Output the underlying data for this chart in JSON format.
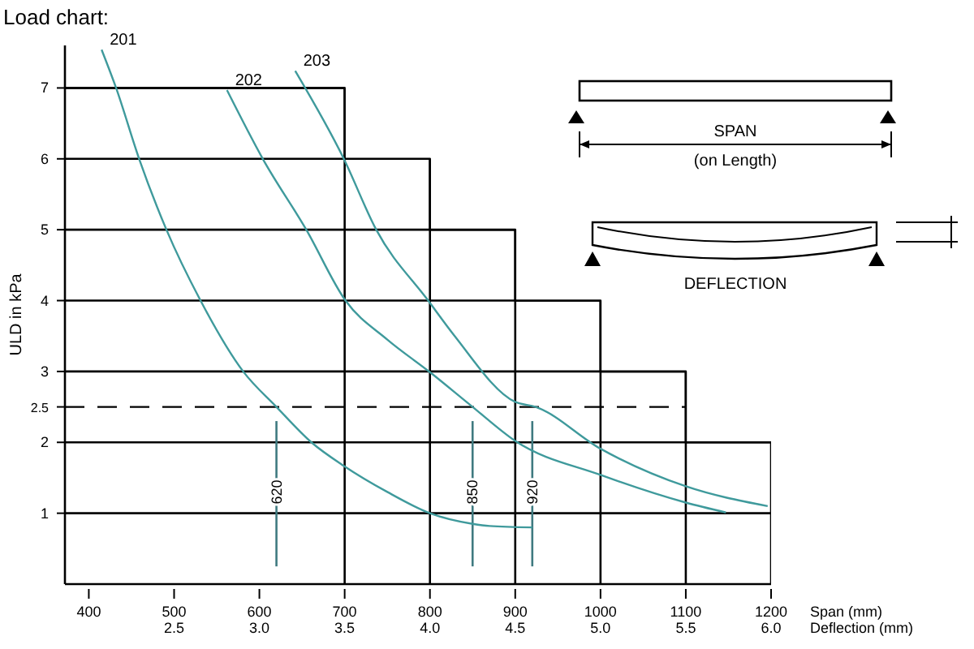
{
  "chart_data": {
    "type": "line",
    "title": "Load chart:",
    "xlabel": "Span (mm)",
    "x2label": "Deflection (mm)",
    "ylabel": "ULD in kPa",
    "xlim": [
      372,
      1200
    ],
    "xticks": [
      400,
      500,
      600,
      700,
      800,
      900,
      1000,
      1100,
      1200
    ],
    "x2lim": [
      1.86,
      6.0
    ],
    "x2ticks": [
      {
        "value": 2.5,
        "label": "2.5"
      },
      {
        "value": 3,
        "label": "3.0"
      },
      {
        "value": 3.5,
        "label": "3.5"
      },
      {
        "value": 4,
        "label": "4.0"
      },
      {
        "value": 4.5,
        "label": "4.5"
      },
      {
        "value": 5,
        "label": "5.0"
      },
      {
        "value": 5.5,
        "label": "5.5"
      },
      {
        "value": 6,
        "label": "6.0"
      }
    ],
    "ylim": [
      0,
      7.6
    ],
    "yticks": [
      1,
      2,
      2.5,
      3,
      4,
      5,
      6,
      7
    ],
    "grid": true,
    "marker": "none",
    "line_style": "solid",
    "series": [
      {
        "type": "step",
        "color": "#000000",
        "x": [
          372,
          700,
          800,
          900,
          1000,
          1100,
          1200
        ],
        "values": [
          7,
          6,
          5,
          4,
          3,
          2,
          2
        ]
      },
      {
        "name": "201",
        "color": "#3f9a9c",
        "x": [
          415,
          432,
          459,
          491,
          531,
          581,
          620,
          661,
          700,
          750,
          800,
          850,
          870,
          920
        ],
        "values": [
          7.54,
          7,
          6,
          5,
          4,
          3,
          2.5,
          2,
          1.66,
          1.3,
          1,
          0.85,
          0.82,
          0.8
        ]
      },
      {
        "name": "202",
        "color": "#3f9a9c",
        "x": [
          562,
          604,
          655,
          701,
          750,
          800,
          850,
          900,
          1000,
          1100,
          1147
        ],
        "values": [
          6.97,
          6,
          5,
          4,
          3.45,
          2.99,
          2.5,
          2.02,
          1.54,
          1.15,
          1.01
        ]
      },
      {
        "name": "203",
        "color": "#3f9a9c",
        "x": [
          642,
          699,
          737,
          798,
          829,
          900,
          924,
          1000,
          1100,
          1196
        ],
        "values": [
          7.24,
          6,
          5,
          4,
          3.5,
          2.57,
          2.5,
          1.91,
          1.38,
          1.1
        ]
      }
    ],
    "ref_lines": [
      {
        "axis": "y",
        "value": 2.5,
        "line_style": "dashed",
        "color": "#000000"
      },
      {
        "axis": "x",
        "value": 620,
        "label": "620",
        "color": "#3f7a80"
      },
      {
        "axis": "x",
        "value": 850,
        "label": "850",
        "color": "#3f7a80"
      },
      {
        "axis": "x",
        "value": 920,
        "label": "920",
        "color": "#3f7a80"
      }
    ],
    "annotations": [
      "SPAN",
      "(on Length)",
      "DEFLECTION"
    ]
  }
}
